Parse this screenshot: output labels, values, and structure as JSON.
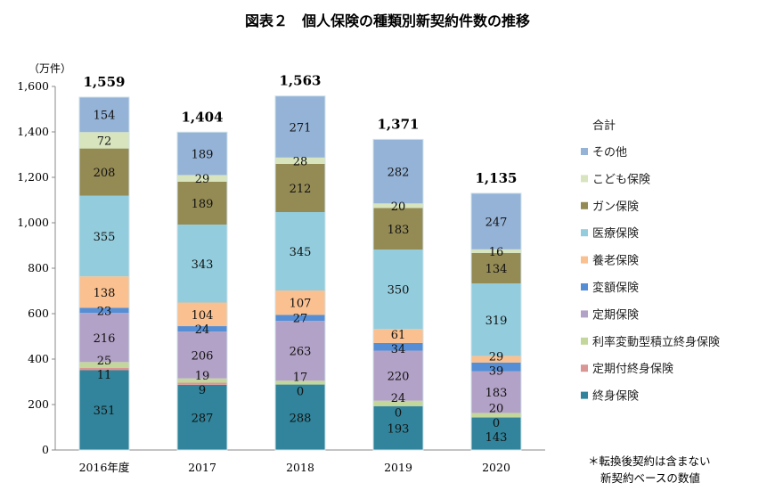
{
  "chart_data": {
    "type": "bar",
    "stacked": true,
    "title": "図表２　個人保険の種類別新契約件数の推移",
    "ylabel": "（万件）",
    "ylim": [
      0,
      1600
    ],
    "yticks": [
      "0",
      "200",
      "400",
      "600",
      "800",
      "1,000",
      "1,200",
      "1,400",
      "1,600"
    ],
    "grid": false,
    "legend_position": "right",
    "categories": [
      "2016年度",
      "2017",
      "2018",
      "2019",
      "2020"
    ],
    "totals_label": "合計",
    "totals": [
      "1,559",
      "1,404",
      "1,563",
      "1,371",
      "1,135"
    ],
    "series": [
      {
        "name": "終身保険",
        "color": "#31849b",
        "values": [
          351,
          287,
          288,
          193,
          143
        ]
      },
      {
        "name": "定期付終身保険",
        "color": "#d99694",
        "values": [
          11,
          9,
          0,
          0,
          0
        ]
      },
      {
        "name": "利率変動型積立終身保険",
        "color": "#c3d69b",
        "values": [
          25,
          19,
          17,
          24,
          20
        ]
      },
      {
        "name": "定期保険",
        "color": "#b3a2c7",
        "values": [
          216,
          206,
          263,
          220,
          183
        ]
      },
      {
        "name": "変額保険",
        "color": "#558ed5",
        "values": [
          23,
          24,
          27,
          34,
          39
        ]
      },
      {
        "name": "養老保険",
        "color": "#fac090",
        "values": [
          138,
          104,
          107,
          61,
          29
        ]
      },
      {
        "name": "医療保険",
        "color": "#93cddd",
        "values": [
          355,
          343,
          345,
          350,
          319
        ]
      },
      {
        "name": "ガン保険",
        "color": "#948a54",
        "values": [
          208,
          189,
          212,
          183,
          134
        ]
      },
      {
        "name": "こども保険",
        "color": "#d7e4bd",
        "values": [
          72,
          29,
          28,
          20,
          16
        ]
      },
      {
        "name": "その他",
        "color": "#95b3d7",
        "values": [
          154,
          189,
          271,
          282,
          247
        ]
      }
    ],
    "note": [
      "＊転換後契約は含まない",
      "新契約ベースの数値"
    ]
  }
}
